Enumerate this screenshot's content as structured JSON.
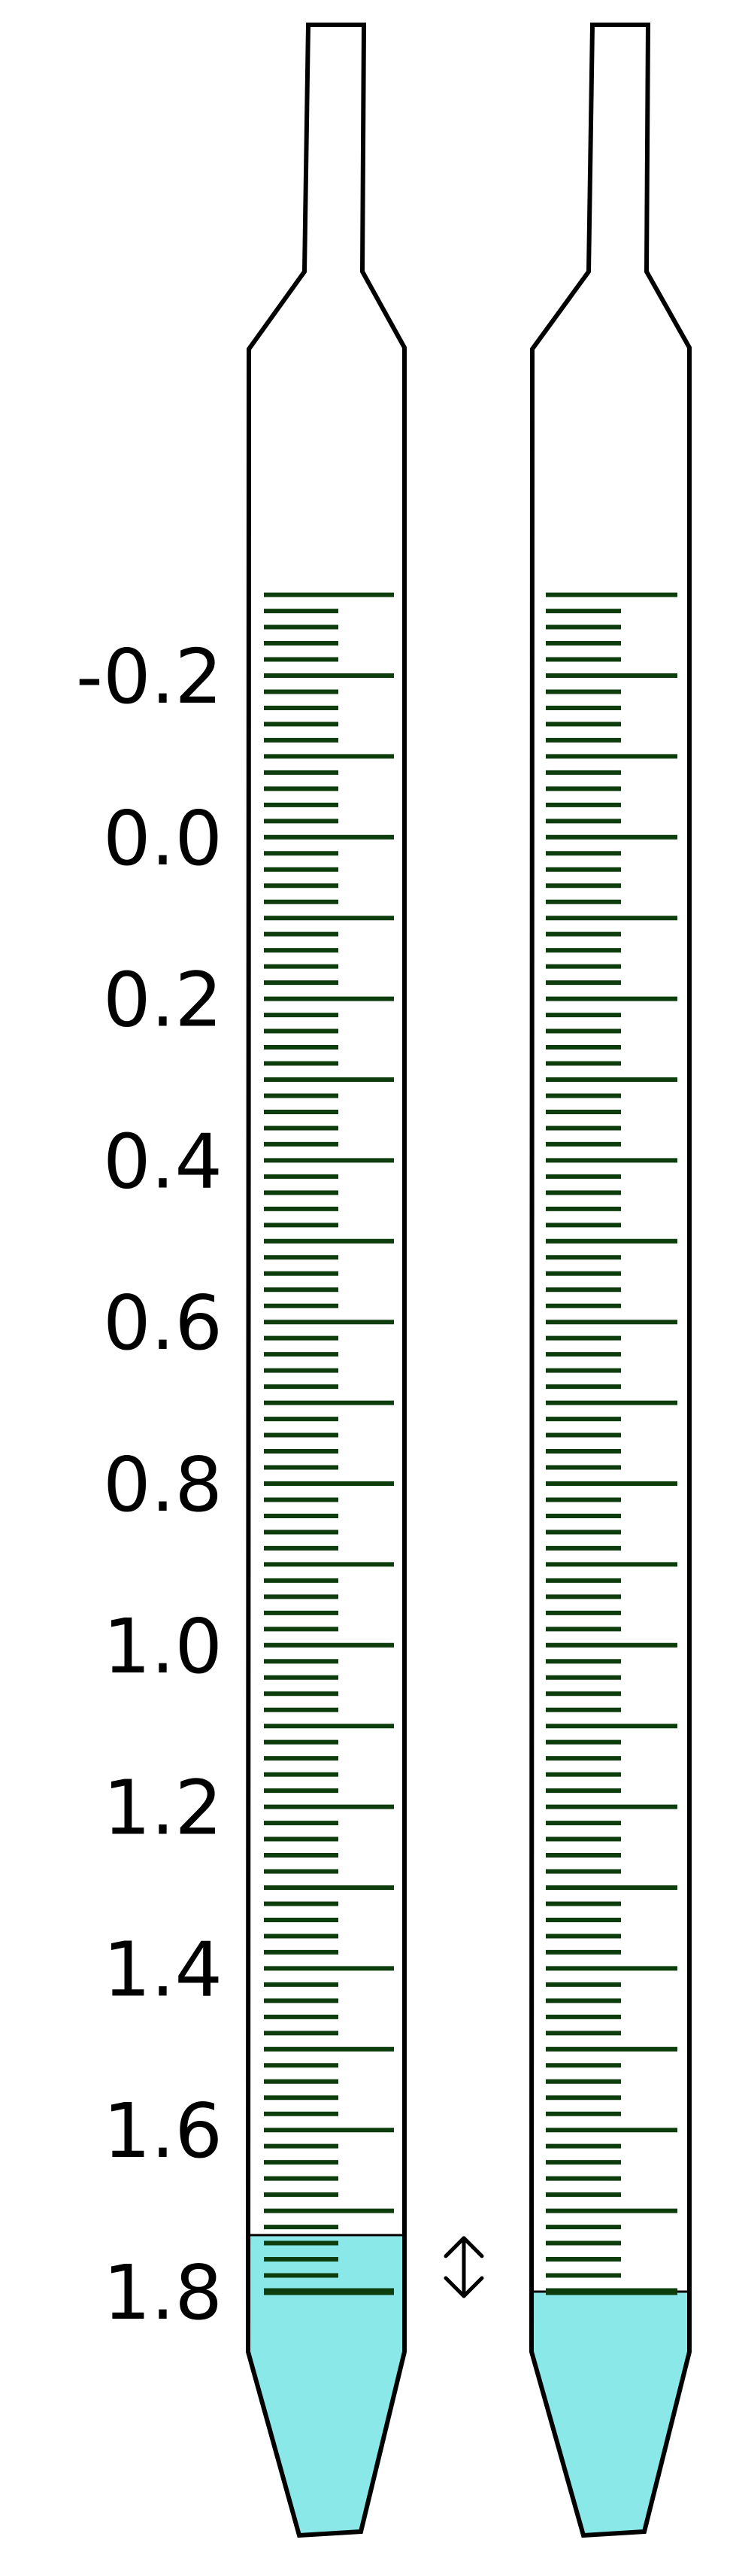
{
  "scale": {
    "labels": [
      "-0.2",
      "0.0",
      "0.2",
      "0.4",
      "0.6",
      "0.8",
      "1.0",
      "1.2",
      "1.4",
      "1.6",
      "1.8"
    ],
    "minor_divisions_per_label_step": 10,
    "major_tick_every_minor": 5
  },
  "pipettes": [
    {
      "id": "left",
      "liquid_top_value": 1.73,
      "shows_meniscus_gap_arrow": true
    },
    {
      "id": "right",
      "liquid_top_value": 1.8,
      "shows_meniscus_gap_arrow": false
    }
  ],
  "colors": {
    "outline": "#000000",
    "graduation": "#0d3d0d",
    "liquid": "#8ae8e8",
    "background": "#ffffff"
  },
  "icons": [
    "double-headed-arrow-icon"
  ]
}
